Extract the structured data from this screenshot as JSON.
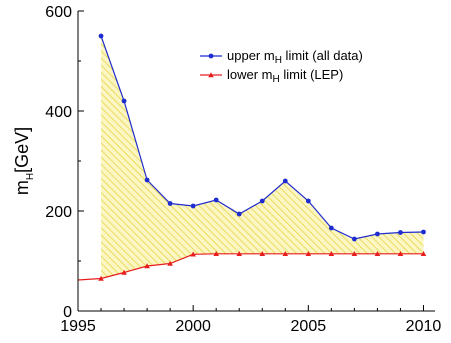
{
  "chart_data": {
    "type": "line",
    "x": [
      1996,
      1997,
      1998,
      1999,
      2000,
      2001,
      2002,
      2003,
      2004,
      2005,
      2006,
      2007,
      2008,
      2009,
      2010
    ],
    "series": [
      {
        "name": "upper mH limit (all data)",
        "name_main": "upper m",
        "name_sub": "H",
        "name_rest": " limit (all data)",
        "color": "#1f2ccf",
        "marker": "circle",
        "values": [
          550,
          420,
          262,
          215,
          210,
          222,
          194,
          220,
          260,
          220,
          166,
          144,
          154,
          157,
          158
        ]
      },
      {
        "name": "lower mH limit (LEP)",
        "name_main": "lower m",
        "name_sub": "H",
        "name_rest": " limit (LEP)",
        "color": "#e81e1e",
        "marker": "triangle",
        "values": [
          65,
          77,
          90,
          95,
          113.4,
          114.4,
          114.4,
          114.4,
          114.4,
          114.4,
          114.4,
          114.4,
          114.4,
          114.4,
          114.4
        ]
      }
    ],
    "lower_extension": {
      "x": [
        1995,
        1996
      ],
      "values": [
        62,
        65
      ]
    },
    "fill_between": {
      "color": "#e8e26a",
      "hatch": true
    },
    "xlim": [
      1995,
      2010.5
    ],
    "ylim": [
      0,
      600
    ],
    "xticks": [
      1995,
      2000,
      2005,
      2010
    ],
    "yticks": [
      0,
      200,
      400,
      600
    ],
    "ylabel_main": "m",
    "ylabel_sub": "H",
    "ylabel_unit": "[GeV]",
    "xlabel": "",
    "title": "",
    "legend_position": "upper-right",
    "grid": false
  }
}
